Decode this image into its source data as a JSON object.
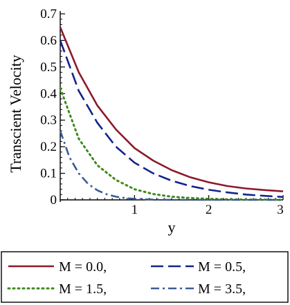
{
  "chart_data": {
    "type": "line",
    "xlabel": "y",
    "ylabel": "Transcient Velocity",
    "xlim": [
      0,
      3
    ],
    "ylim": [
      0,
      0.7
    ],
    "xticks": [
      1,
      2,
      3
    ],
    "yticks": [
      0,
      0.1,
      0.2,
      0.3,
      0.4,
      0.5,
      0.6,
      0.7
    ],
    "grid": false,
    "legend_position": "bottom",
    "legend_columns": 2,
    "series": [
      {
        "name": "M = 0.0,",
        "color": "#8b1a2b",
        "dash": "solid",
        "x": [
          0,
          0.25,
          0.5,
          0.75,
          1.0,
          1.25,
          1.5,
          1.75,
          2.0,
          2.25,
          2.5,
          2.75,
          3.0
        ],
        "y": [
          0.65,
          0.48,
          0.355,
          0.265,
          0.195,
          0.148,
          0.112,
          0.085,
          0.066,
          0.052,
          0.043,
          0.037,
          0.032
        ]
      },
      {
        "name": "M =  0.5,",
        "color": "#14238a",
        "dash": "long-dash",
        "x": [
          0,
          0.25,
          0.5,
          0.75,
          1.0,
          1.25,
          1.5,
          1.75,
          2.0,
          2.25,
          2.5,
          2.75,
          3.0
        ],
        "y": [
          0.6,
          0.41,
          0.29,
          0.2,
          0.14,
          0.1,
          0.072,
          0.052,
          0.038,
          0.028,
          0.02,
          0.015,
          0.011
        ]
      },
      {
        "name": "M = 1.5,",
        "color": "#3c8a1e",
        "dash": "dotted",
        "x": [
          0,
          0.25,
          0.5,
          0.75,
          1.0,
          1.25,
          1.5,
          1.75,
          2.0,
          2.25,
          2.5,
          2.75,
          3.0
        ],
        "y": [
          0.42,
          0.23,
          0.13,
          0.075,
          0.04,
          0.022,
          0.012,
          0.007,
          0.004,
          0.002,
          0.001,
          0.001,
          0.0
        ]
      },
      {
        "name": "M = 3.5,",
        "color": "#3c5a96",
        "dash": "dash-dot",
        "x": [
          0,
          0.125,
          0.25,
          0.375,
          0.5,
          0.625,
          0.75,
          0.875,
          1.0,
          1.25,
          1.5,
          2.0,
          3.0
        ],
        "y": [
          0.26,
          0.16,
          0.1,
          0.06,
          0.036,
          0.021,
          0.012,
          0.007,
          0.004,
          0.001,
          0.0,
          0.0,
          0.0
        ]
      }
    ]
  }
}
